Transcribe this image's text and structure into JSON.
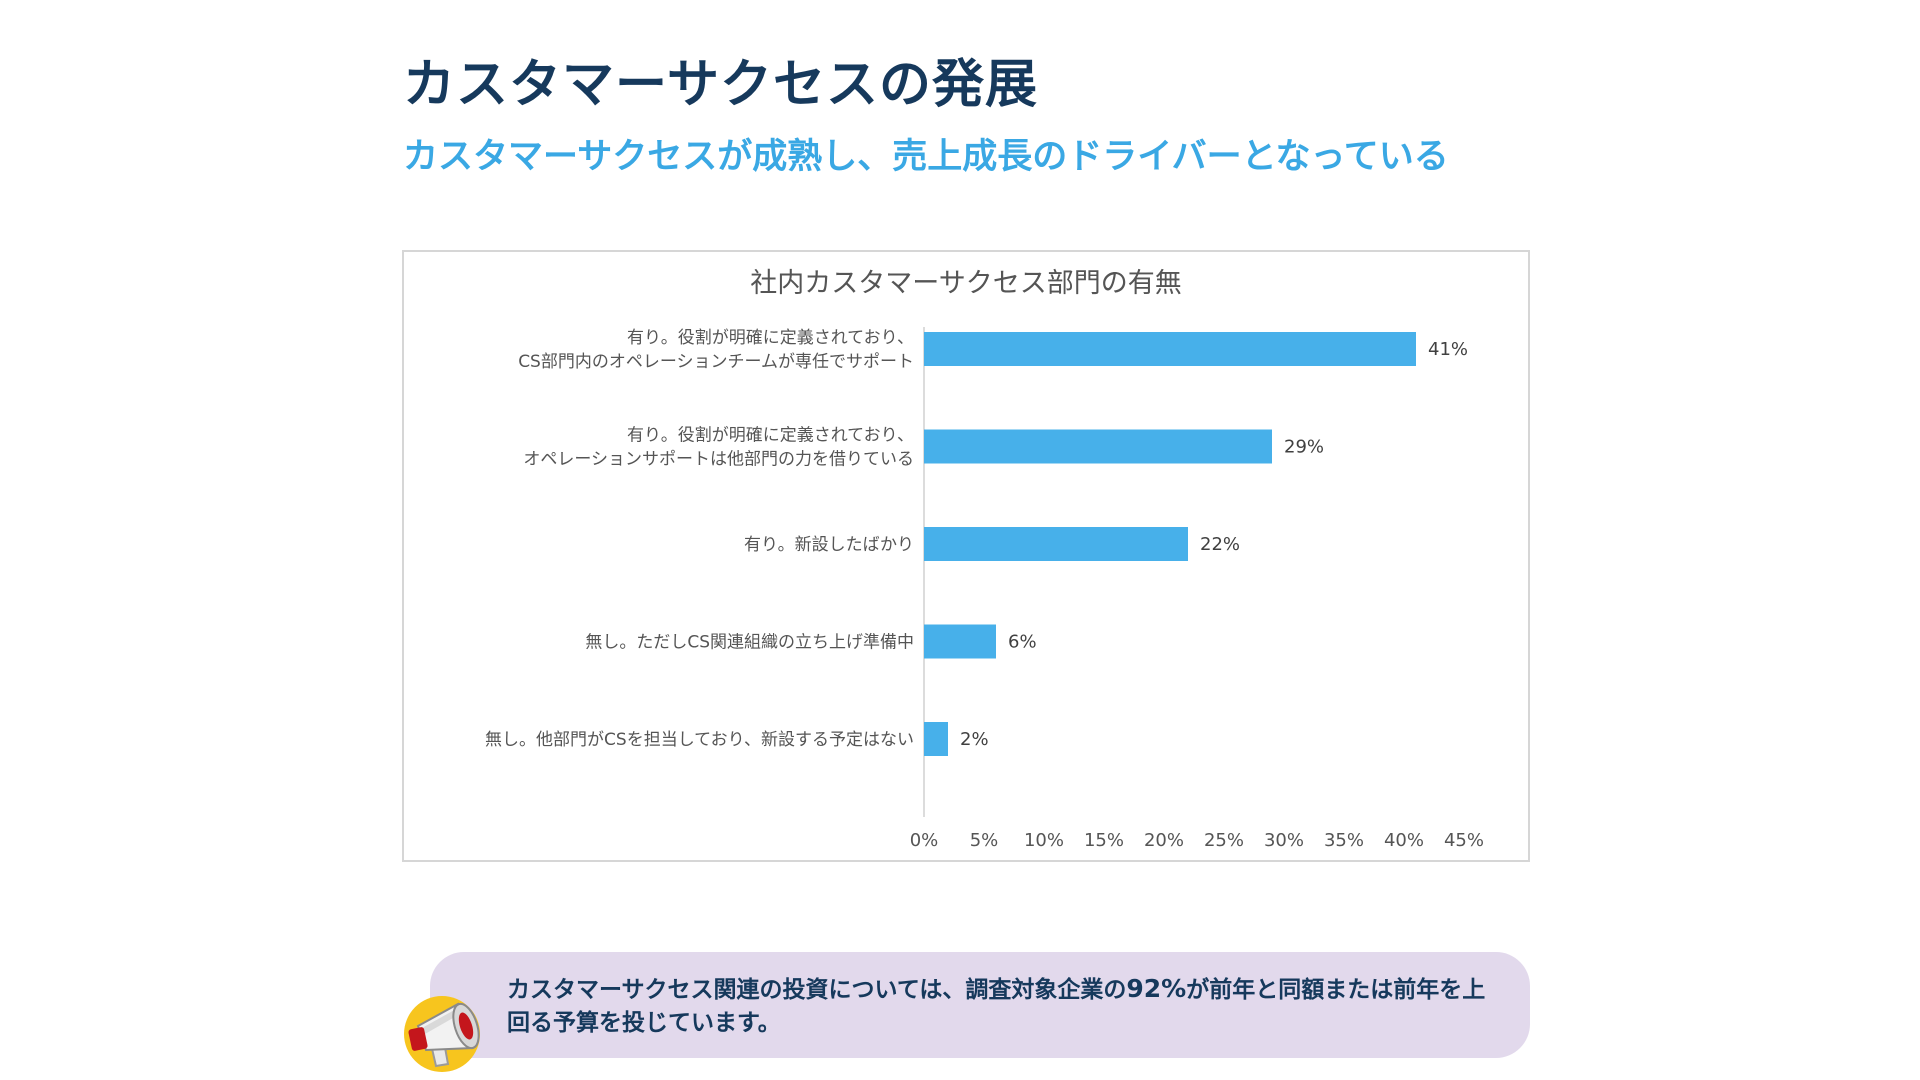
{
  "page": {
    "title": "カスタマーサクセスの発展",
    "subtitle": "カスタマーサクセスが成熟し、売上成長のドライバーとなっている"
  },
  "chart_data": {
    "type": "bar",
    "orientation": "horizontal",
    "title": "社内カスタマーサクセス部門の有無",
    "categories": [
      [
        "有り。役割が明確に定義されており、",
        "CS部門内のオペレーションチームが専任でサポート"
      ],
      [
        "有り。役割が明確に定義されており、",
        "オペレーションサポートは他部門の力を借りている"
      ],
      [
        "有り。新設したばかり"
      ],
      [
        "無し。ただしCS関連組織の立ち上げ準備中"
      ],
      [
        "無し。他部門がCSを担当しており、新設する予定はない"
      ]
    ],
    "values": [
      41,
      29,
      22,
      6,
      2
    ],
    "value_labels": [
      "41%",
      "29%",
      "22%",
      "6%",
      "2%"
    ],
    "xlim": [
      0,
      45
    ],
    "x_ticks": [
      0,
      5,
      10,
      15,
      20,
      25,
      30,
      35,
      40,
      45
    ],
    "x_tick_labels": [
      "0%",
      "5%",
      "10%",
      "15%",
      "20%",
      "25%",
      "30%",
      "35%",
      "40%",
      "45%"
    ],
    "grid": false,
    "bar_color": "#47b0ea"
  },
  "note": {
    "text_before": "カスタマーサクセス関連の投資については、調査対象企業の",
    "highlight": "92%",
    "text_after": "が前年と同額または前年を上回る予算を投じています。"
  },
  "icons": {
    "note_icon": "megaphone-icon"
  }
}
